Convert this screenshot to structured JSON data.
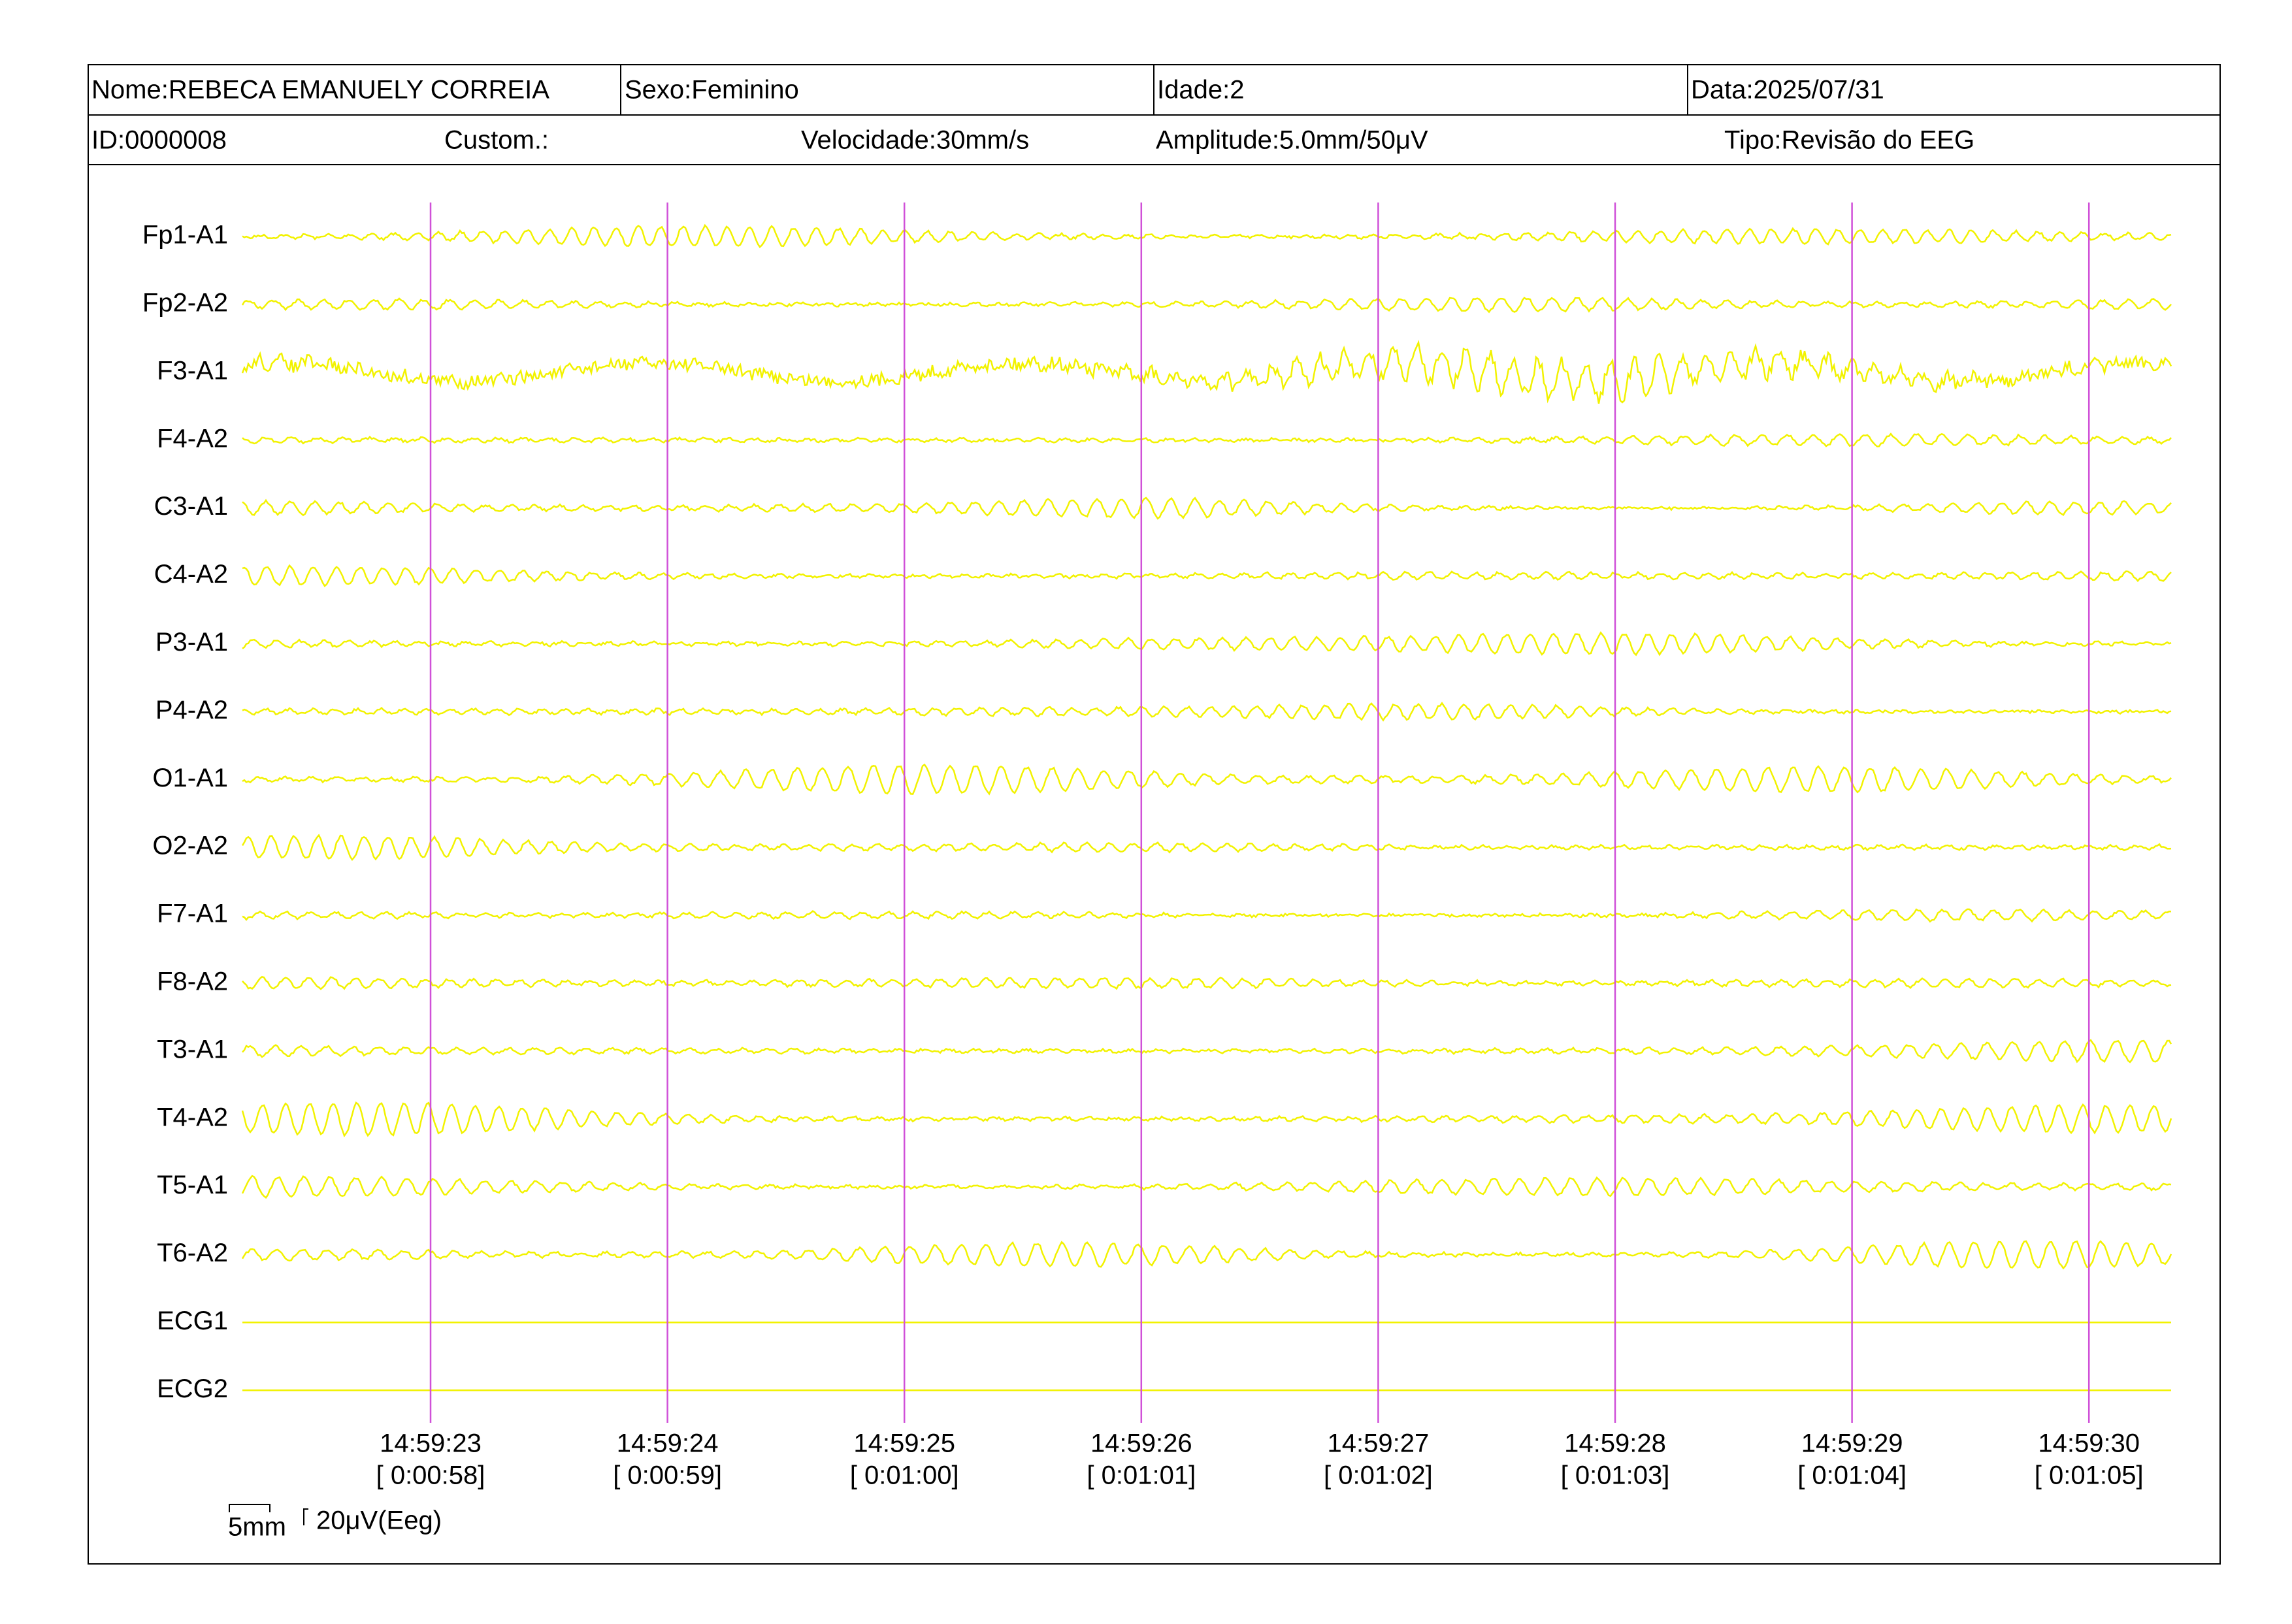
{
  "header": {
    "nome": "Nome:REBECA EMANUELY CORREIA",
    "sexo": "Sexo:Feminino",
    "idade": "Idade:2",
    "data": "Data:2025/07/31",
    "id": "ID:0000008",
    "custom": "Custom.:",
    "velocidade": "Velocidade:30mm/s",
    "amplitude": "Amplitude:5.0mm/50μV",
    "tipo": "Tipo:Revisão do EEG"
  },
  "channels": [
    "Fp1-A1",
    "Fp2-A2",
    "F3-A1",
    "F4-A2",
    "C3-A1",
    "C4-A2",
    "P3-A1",
    "P4-A2",
    "O1-A1",
    "O2-A2",
    "F7-A1",
    "F8-A2",
    "T3-A1",
    "T4-A2",
    "T5-A1",
    "T6-A2",
    "ECG1",
    "ECG2"
  ],
  "time_marks": [
    {
      "clock": "14:59:23",
      "elapsed": "[ 0:00:58]"
    },
    {
      "clock": "14:59:24",
      "elapsed": "[ 0:00:59]"
    },
    {
      "clock": "14:59:25",
      "elapsed": "[ 0:01:00]"
    },
    {
      "clock": "14:59:26",
      "elapsed": "[ 0:01:01]"
    },
    {
      "clock": "14:59:27",
      "elapsed": "[ 0:01:02]"
    },
    {
      "clock": "14:59:28",
      "elapsed": "[ 0:01:03]"
    },
    {
      "clock": "14:59:29",
      "elapsed": "[ 0:01:04]"
    },
    {
      "clock": "14:59:30",
      "elapsed": "[ 0:01:05]"
    }
  ],
  "scale": {
    "time": "5mm",
    "amplitude": "20μV(Eeg)"
  }
}
